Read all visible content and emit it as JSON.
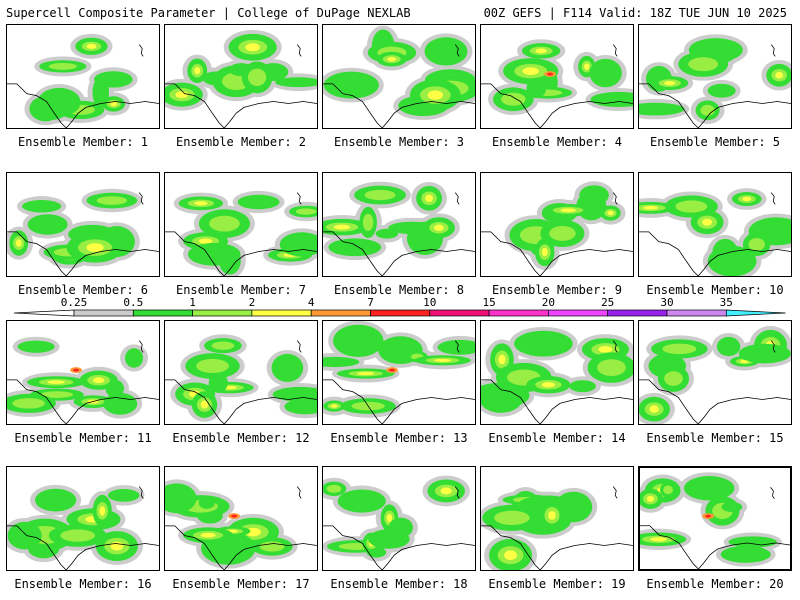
{
  "header": {
    "left": "Supercell Composite Parameter | College of DuPage NEXLAB",
    "right": "00Z GEFS | F114 Valid: 18Z TUE JUN 10 2025"
  },
  "colorbar": {
    "labels": [
      "0.25",
      "0.5",
      "1",
      "2",
      "4",
      "7",
      "10",
      "15",
      "20",
      "25",
      "30",
      "35"
    ],
    "colors": [
      "#cccccc",
      "#33dd33",
      "#99ee44",
      "#ffff44",
      "#ff9933",
      "#ff2222",
      "#ee1177",
      "#ff33cc",
      "#ee44ff",
      "#9922ee",
      "#cc88ee",
      "#44eeff"
    ]
  },
  "panels": [
    {
      "caption": "Ensemble Member: 1"
    },
    {
      "caption": "Ensemble Member: 2"
    },
    {
      "caption": "Ensemble Member: 3"
    },
    {
      "caption": "Ensemble Member: 4"
    },
    {
      "caption": "Ensemble Member: 5"
    },
    {
      "caption": "Ensemble Member: 6"
    },
    {
      "caption": "Ensemble Member: 7"
    },
    {
      "caption": "Ensemble Member: 8"
    },
    {
      "caption": "Ensemble Member: 9"
    },
    {
      "caption": "Ensemble Member: 10"
    },
    {
      "caption": "Ensemble Member: 11"
    },
    {
      "caption": "Ensemble Member: 12"
    },
    {
      "caption": "Ensemble Member: 13"
    },
    {
      "caption": "Ensemble Member: 14"
    },
    {
      "caption": "Ensemble Member: 15"
    },
    {
      "caption": "Ensemble Member: 16"
    },
    {
      "caption": "Ensemble Member: 17"
    },
    {
      "caption": "Ensemble Member: 18"
    },
    {
      "caption": "Ensemble Member: 19"
    },
    {
      "caption": "Ensemble Member: 20"
    }
  ]
}
